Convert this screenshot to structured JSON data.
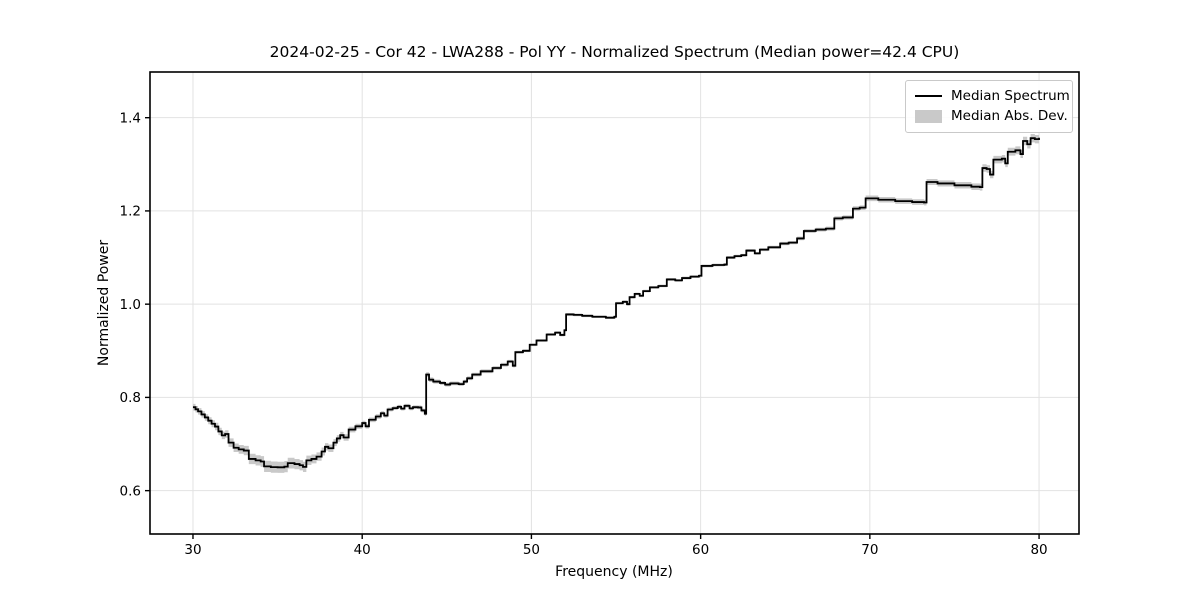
{
  "chart_data": {
    "type": "line",
    "title": "2024-02-25 - Cor 42 - LWA288 - Pol YY - Normalized Spectrum (Median power=42.4 CPU)",
    "xlabel": "Frequency (MHz)",
    "ylabel": "Normalized Power",
    "xlim": [
      27.46,
      82.36
    ],
    "ylim": [
      0.507,
      1.498
    ],
    "xticks": [
      30,
      40,
      50,
      60,
      70,
      80
    ],
    "xtick_labels": [
      "30",
      "40",
      "50",
      "60",
      "70",
      "80"
    ],
    "yticks": [
      0.6,
      0.8,
      1.0,
      1.2,
      1.4
    ],
    "ytick_labels": [
      "0.6",
      "0.8",
      "1.0",
      "1.2",
      "1.4"
    ],
    "grid": true,
    "line_style": "steps",
    "legend": {
      "position": "upper right",
      "entries": [
        {
          "label": "Median Spectrum",
          "type": "line",
          "color": "#000000"
        },
        {
          "label": "Median Abs. Dev.",
          "type": "band",
          "color": "#c9c9c9"
        }
      ]
    },
    "colors": {
      "line": "#000000",
      "band": "#c9c9c9",
      "grid": "#e2e2e2",
      "spine": "#000000",
      "background": "#ffffff"
    },
    "series": [
      {
        "name": "Median Spectrum",
        "points_format": [
          "freq_mhz",
          "normalized_power",
          "median_abs_dev"
        ],
        "points": [
          [
            30.0,
            0.779,
            0.007
          ],
          [
            30.15,
            0.7745,
            0.007
          ],
          [
            30.3,
            0.77,
            0.007
          ],
          [
            30.5,
            0.7635,
            0.007
          ],
          [
            30.7,
            0.757,
            0.007
          ],
          [
            30.9,
            0.75,
            0.0075
          ],
          [
            31.1,
            0.7435,
            0.0075
          ],
          [
            31.3,
            0.7375,
            0.008
          ],
          [
            31.5,
            0.727,
            0.008
          ],
          [
            31.7,
            0.7185,
            0.008
          ],
          [
            31.9,
            0.7215,
            0.008
          ],
          [
            32.1,
            0.703,
            0.009
          ],
          [
            32.4,
            0.692,
            0.009
          ],
          [
            32.7,
            0.6885,
            0.0095
          ],
          [
            33.0,
            0.686,
            0.01
          ],
          [
            33.3,
            0.668,
            0.011
          ],
          [
            33.7,
            0.665,
            0.011
          ],
          [
            34.0,
            0.6625,
            0.0115
          ],
          [
            34.2,
            0.652,
            0.012
          ],
          [
            34.6,
            0.6505,
            0.012
          ],
          [
            35.0,
            0.65,
            0.012
          ],
          [
            35.4,
            0.6515,
            0.012
          ],
          [
            35.6,
            0.659,
            0.0115
          ],
          [
            36.0,
            0.657,
            0.011
          ],
          [
            36.3,
            0.6545,
            0.011
          ],
          [
            36.5,
            0.651,
            0.011
          ],
          [
            36.7,
            0.665,
            0.01
          ],
          [
            37.0,
            0.668,
            0.0095
          ],
          [
            37.3,
            0.673,
            0.009
          ],
          [
            37.6,
            0.684,
            0.0085
          ],
          [
            37.8,
            0.694,
            0.008
          ],
          [
            38.0,
            0.691,
            0.008
          ],
          [
            38.3,
            0.703,
            0.0075
          ],
          [
            38.5,
            0.712,
            0.007
          ],
          [
            38.7,
            0.719,
            0.007
          ],
          [
            38.9,
            0.714,
            0.007
          ],
          [
            39.2,
            0.731,
            0.006
          ],
          [
            39.6,
            0.738,
            0.0055
          ],
          [
            40.0,
            0.745,
            0.005
          ],
          [
            40.2,
            0.738,
            0.005
          ],
          [
            40.4,
            0.752,
            0.005
          ],
          [
            40.8,
            0.759,
            0.005
          ],
          [
            41.1,
            0.766,
            0.0045
          ],
          [
            41.3,
            0.761,
            0.0045
          ],
          [
            41.5,
            0.774,
            0.004
          ],
          [
            41.8,
            0.777,
            0.004
          ],
          [
            42.1,
            0.78,
            0.004
          ],
          [
            42.3,
            0.776,
            0.004
          ],
          [
            42.5,
            0.782,
            0.004
          ],
          [
            42.8,
            0.7765,
            0.004
          ],
          [
            43.0,
            0.779,
            0.004
          ],
          [
            43.3,
            0.7785,
            0.004
          ],
          [
            43.5,
            0.772,
            0.004
          ],
          [
            43.7,
            0.765,
            0.0045
          ],
          [
            43.78,
            0.849,
            0.005
          ],
          [
            43.95,
            0.838,
            0.005
          ],
          [
            44.2,
            0.834,
            0.0045
          ],
          [
            44.6,
            0.831,
            0.004
          ],
          [
            44.9,
            0.8275,
            0.004
          ],
          [
            45.2,
            0.83,
            0.004
          ],
          [
            45.7,
            0.8285,
            0.004
          ],
          [
            46.0,
            0.834,
            0.004
          ],
          [
            46.2,
            0.841,
            0.004
          ],
          [
            46.5,
            0.849,
            0.004
          ],
          [
            47.0,
            0.856,
            0.004
          ],
          [
            47.7,
            0.863,
            0.004
          ],
          [
            48.2,
            0.87,
            0.004
          ],
          [
            48.6,
            0.877,
            0.0035
          ],
          [
            48.9,
            0.868,
            0.0035
          ],
          [
            49.05,
            0.897,
            0.003
          ],
          [
            49.5,
            0.9,
            0.003
          ],
          [
            49.9,
            0.913,
            0.003
          ],
          [
            50.3,
            0.922,
            0.003
          ],
          [
            50.9,
            0.935,
            0.003
          ],
          [
            51.4,
            0.939,
            0.003
          ],
          [
            51.7,
            0.934,
            0.003
          ],
          [
            51.95,
            0.944,
            0.003
          ],
          [
            52.05,
            0.978,
            0.003
          ],
          [
            52.5,
            0.977,
            0.003
          ],
          [
            53.0,
            0.975,
            0.0028
          ],
          [
            53.6,
            0.973,
            0.0028
          ],
          [
            54.4,
            0.971,
            0.0028
          ],
          [
            54.9,
            0.973,
            0.0028
          ],
          [
            55.0,
            1.002,
            0.0028
          ],
          [
            55.4,
            1.005,
            0.0028
          ],
          [
            55.65,
            1.0,
            0.0028
          ],
          [
            55.8,
            1.015,
            0.0028
          ],
          [
            56.1,
            1.022,
            0.0028
          ],
          [
            56.4,
            1.018,
            0.0028
          ],
          [
            56.6,
            1.028,
            0.0028
          ],
          [
            57.0,
            1.036,
            0.0028
          ],
          [
            57.5,
            1.039,
            0.0028
          ],
          [
            58.0,
            1.053,
            0.0028
          ],
          [
            58.5,
            1.051,
            0.0028
          ],
          [
            58.9,
            1.056,
            0.003
          ],
          [
            59.4,
            1.059,
            0.003
          ],
          [
            59.9,
            1.061,
            0.003
          ],
          [
            60.05,
            1.082,
            0.003
          ],
          [
            60.7,
            1.084,
            0.003
          ],
          [
            61.4,
            1.085,
            0.003
          ],
          [
            61.55,
            1.1,
            0.003
          ],
          [
            62.0,
            1.103,
            0.003
          ],
          [
            62.4,
            1.105,
            0.003
          ],
          [
            62.7,
            1.115,
            0.003
          ],
          [
            63.2,
            1.109,
            0.003
          ],
          [
            63.5,
            1.117,
            0.0032
          ],
          [
            64.0,
            1.122,
            0.0032
          ],
          [
            64.7,
            1.13,
            0.0035
          ],
          [
            65.2,
            1.132,
            0.0035
          ],
          [
            65.7,
            1.141,
            0.004
          ],
          [
            66.1,
            1.157,
            0.004
          ],
          [
            66.8,
            1.16,
            0.004
          ],
          [
            67.4,
            1.162,
            0.0042
          ],
          [
            67.9,
            1.184,
            0.0045
          ],
          [
            68.4,
            1.186,
            0.0045
          ],
          [
            69.0,
            1.205,
            0.005
          ],
          [
            69.4,
            1.207,
            0.005
          ],
          [
            69.75,
            1.227,
            0.006
          ],
          [
            70.5,
            1.224,
            0.006
          ],
          [
            71.5,
            1.221,
            0.006
          ],
          [
            72.5,
            1.219,
            0.006
          ],
          [
            73.2,
            1.218,
            0.006
          ],
          [
            73.35,
            1.262,
            0.0065
          ],
          [
            74.0,
            1.259,
            0.0065
          ],
          [
            75.0,
            1.255,
            0.007
          ],
          [
            76.0,
            1.252,
            0.007
          ],
          [
            76.5,
            1.251,
            0.0075
          ],
          [
            76.65,
            1.292,
            0.008
          ],
          [
            76.9,
            1.29,
            0.008
          ],
          [
            77.1,
            1.278,
            0.008
          ],
          [
            77.3,
            1.31,
            0.008
          ],
          [
            77.8,
            1.312,
            0.008
          ],
          [
            78.0,
            1.302,
            0.008
          ],
          [
            78.15,
            1.327,
            0.0085
          ],
          [
            78.6,
            1.33,
            0.0085
          ],
          [
            78.9,
            1.322,
            0.0085
          ],
          [
            79.05,
            1.35,
            0.009
          ],
          [
            79.3,
            1.343,
            0.009
          ],
          [
            79.5,
            1.356,
            0.009
          ],
          [
            79.75,
            1.354,
            0.009
          ],
          [
            80.0,
            1.357,
            0.009
          ]
        ]
      }
    ],
    "band": {
      "name": "Median Abs. Dev.",
      "definition": "normalized_power ± median_abs_dev",
      "color": "#c9c9c9"
    }
  }
}
